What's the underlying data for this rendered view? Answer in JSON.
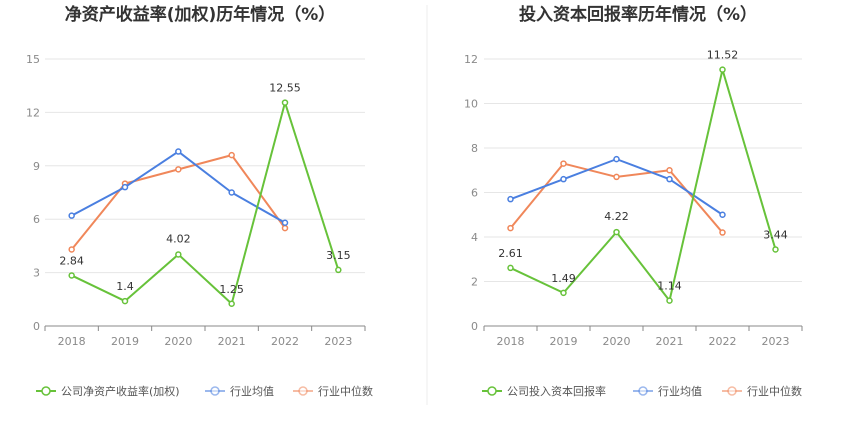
{
  "colors": {
    "company": "#67c23a",
    "industry_avg": "#4a7fe0",
    "industry_median": "#f0875a"
  },
  "chart_data": [
    {
      "type": "line",
      "title": "净资产收益率(加权)历年情况（%）",
      "categories": [
        "2018",
        "2019",
        "2020",
        "2021",
        "2022",
        "2023"
      ],
      "ylim": [
        0,
        15
      ],
      "yticks": [
        0,
        3,
        6,
        9,
        12,
        15
      ],
      "grid": true,
      "legend_position": "bottom",
      "series": [
        {
          "name": "公司净资产收益率(加权)",
          "key": "company",
          "values": [
            2.84,
            1.4,
            4.02,
            1.25,
            12.55,
            3.15
          ],
          "labels": [
            "2.84",
            "1.4",
            "4.02",
            "1.25",
            "12.55",
            "3.15"
          ]
        },
        {
          "name": "行业均值",
          "key": "industry_avg",
          "values": [
            6.2,
            7.8,
            9.8,
            7.5,
            5.8,
            null
          ]
        },
        {
          "name": "行业中位数",
          "key": "industry_median",
          "values": [
            4.3,
            8.0,
            8.8,
            9.6,
            5.5,
            null
          ]
        }
      ]
    },
    {
      "type": "line",
      "title": "投入资本回报率历年情况（%）",
      "categories": [
        "2018",
        "2019",
        "2020",
        "2021",
        "2022",
        "2023"
      ],
      "ylim": [
        0,
        12
      ],
      "yticks": [
        0,
        2,
        4,
        6,
        8,
        10,
        12
      ],
      "grid": true,
      "legend_position": "bottom",
      "series": [
        {
          "name": "公司投入资本回报率",
          "key": "company",
          "values": [
            2.61,
            1.49,
            4.22,
            1.14,
            11.52,
            3.44
          ],
          "labels": [
            "2.61",
            "1.49",
            "4.22",
            "1.14",
            "11.52",
            "3.44"
          ]
        },
        {
          "name": "行业均值",
          "key": "industry_avg",
          "values": [
            5.7,
            6.6,
            7.5,
            6.6,
            5.0,
            null
          ]
        },
        {
          "name": "行业中位数",
          "key": "industry_median",
          "values": [
            4.4,
            7.3,
            6.7,
            7.0,
            4.2,
            null
          ]
        }
      ]
    }
  ]
}
